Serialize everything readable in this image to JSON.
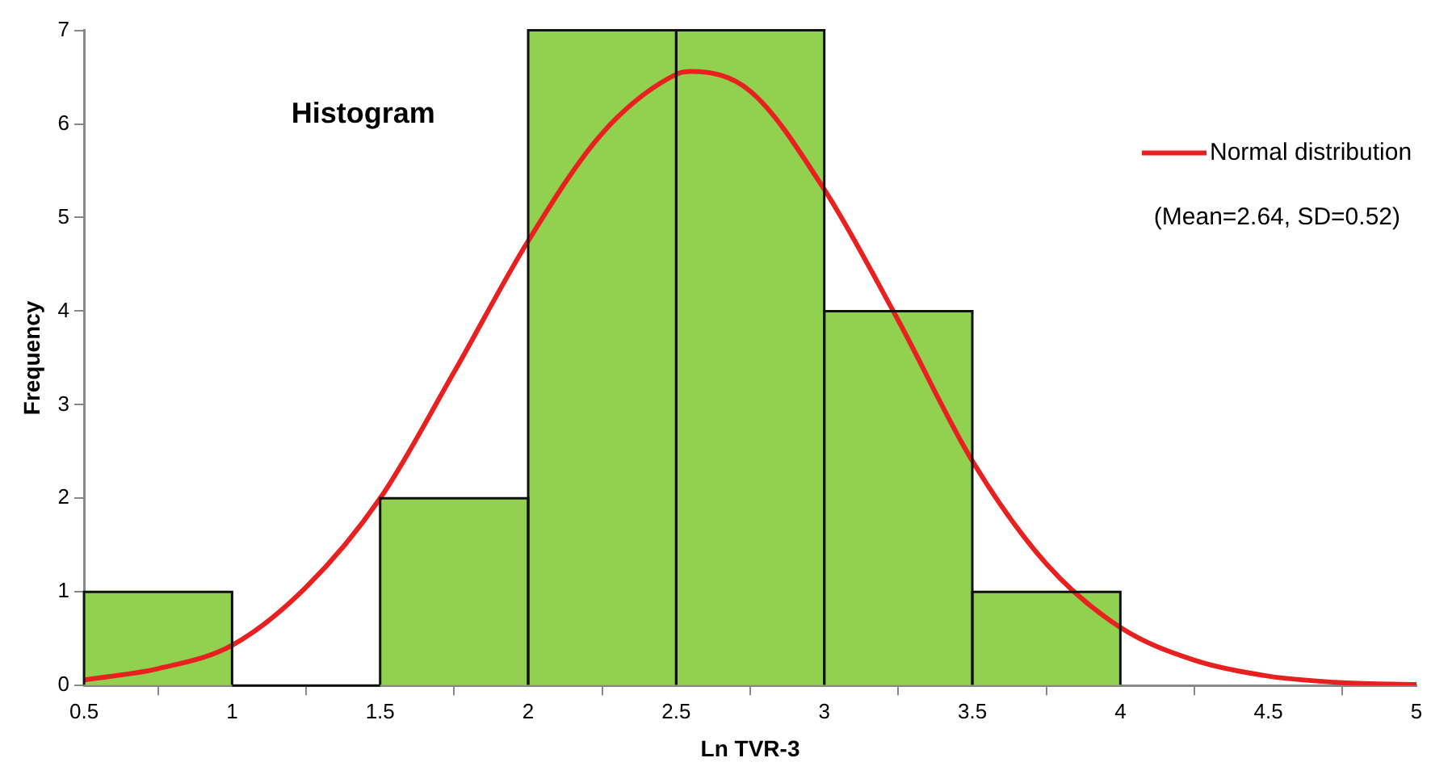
{
  "chart_data": {
    "type": "histogram",
    "title": "Histogram",
    "xlabel": "Ln TVR-3",
    "ylabel": "Frequency",
    "bins": [
      0.5,
      1,
      1.5,
      2,
      2.5,
      3,
      3.5,
      4
    ],
    "values": [
      1,
      0,
      2,
      7,
      7,
      4,
      1
    ],
    "color": "#92d050",
    "series": [
      {
        "name": "Normal distribution",
        "type": "line",
        "color": "#e8201f",
        "x": [
          0.5,
          0.75,
          1,
          1.25,
          1.5,
          1.75,
          2,
          2.25,
          2.5,
          2.55,
          2.75,
          3,
          3.25,
          3.5,
          3.75,
          4,
          4.25,
          4.5,
          4.75,
          5
        ],
        "values": [
          0.06,
          0.18,
          0.43,
          1.05,
          2.0,
          3.35,
          4.75,
          5.9,
          6.53,
          6.56,
          6.35,
          5.3,
          3.9,
          2.4,
          1.3,
          0.62,
          0.27,
          0.1,
          0.03,
          0.01
        ]
      }
    ],
    "annotations": [
      "(Mean=2.64, SD=0.52)"
    ],
    "xlim": [
      0.5,
      5
    ],
    "xticks": [
      0.5,
      1,
      1.5,
      2,
      2.5,
      3,
      3.5,
      4,
      4.5,
      5
    ],
    "ylim": [
      0,
      7
    ],
    "yticks": [
      0,
      1,
      2,
      3,
      4,
      5,
      6,
      7
    ],
    "grid": false,
    "legend": "top right",
    "marker": "none",
    "line_style": "solid"
  }
}
